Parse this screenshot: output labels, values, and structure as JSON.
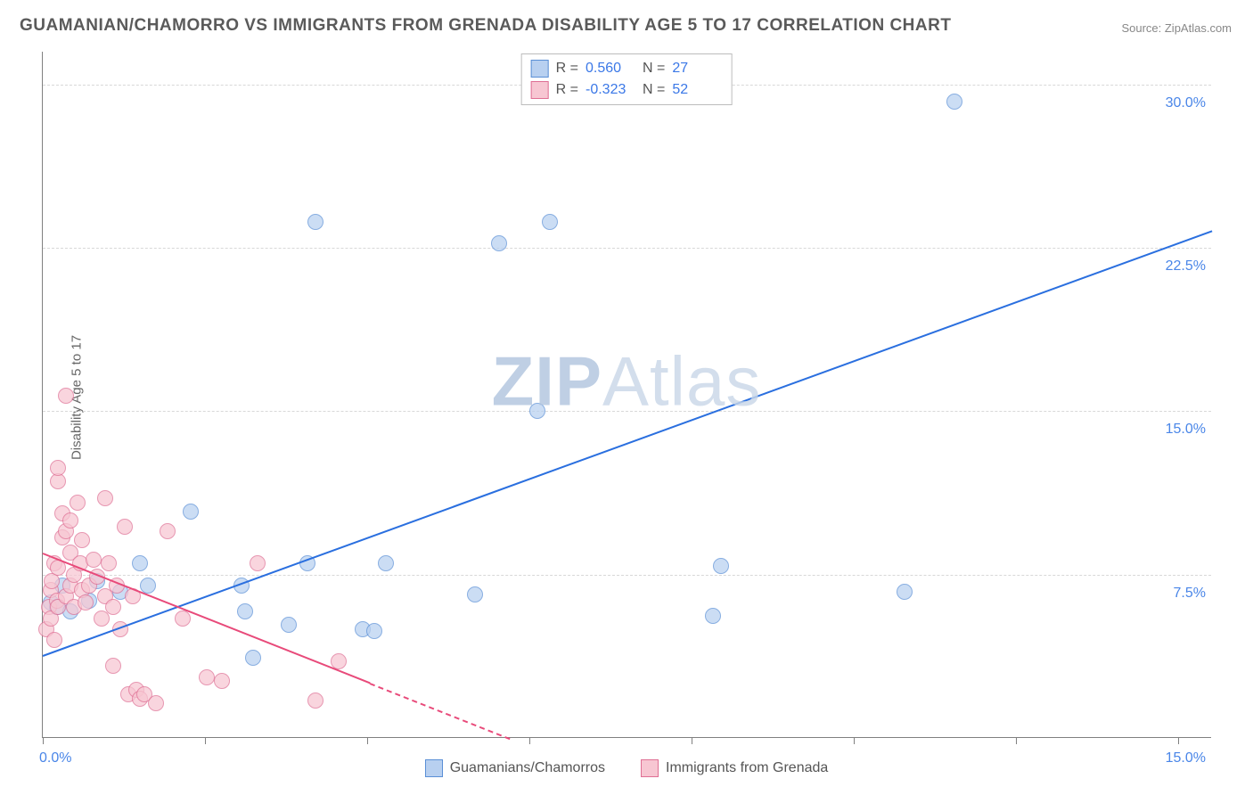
{
  "title": "GUAMANIAN/CHAMORRO VS IMMIGRANTS FROM GRENADA DISABILITY AGE 5 TO 17 CORRELATION CHART",
  "source": "Source: ZipAtlas.com",
  "ylabel": "Disability Age 5 to 17",
  "watermark_bold": "ZIP",
  "watermark_rest": "Atlas",
  "chart": {
    "type": "scatter",
    "xlim": [
      0,
      15
    ],
    "ylim": [
      0,
      31.5
    ],
    "x_ticks": [
      0,
      2.08,
      4.16,
      6.24,
      8.32,
      10.4,
      12.48,
      14.56
    ],
    "x_tick_labels": [
      "0.0%",
      "",
      "",
      "",
      "",
      "",
      "",
      "15.0%"
    ],
    "y_grid": [
      7.5,
      15.0,
      22.5,
      30.0
    ],
    "y_grid_labels": [
      "7.5%",
      "15.0%",
      "22.5%",
      "30.0%"
    ],
    "background_color": "#ffffff",
    "grid_color": "#d8d8d8",
    "axis_color": "#808080",
    "tick_label_color": "#4a86e8",
    "marker_radius": 9,
    "marker_border_width": 1,
    "series": [
      {
        "name": "Guamanians/Chamorros",
        "fill_color": "#b8d0f0",
        "border_color": "#5a8fd6",
        "fill_opacity": 0.72,
        "R": "0.560",
        "N": "27",
        "trend": {
          "x1": 0,
          "y1": 3.8,
          "x2": 15,
          "y2": 23.3,
          "color": "#2a6fdf",
          "width": 2,
          "dash_after_x": null
        },
        "points": [
          [
            0.1,
            6.2
          ],
          [
            0.18,
            6.0
          ],
          [
            0.25,
            7.0
          ],
          [
            0.35,
            5.8
          ],
          [
            0.6,
            6.3
          ],
          [
            0.7,
            7.2
          ],
          [
            1.0,
            6.7
          ],
          [
            1.25,
            8.0
          ],
          [
            1.35,
            7.0
          ],
          [
            1.9,
            10.4
          ],
          [
            2.55,
            7.0
          ],
          [
            2.6,
            5.8
          ],
          [
            2.7,
            3.7
          ],
          [
            3.15,
            5.2
          ],
          [
            3.4,
            8.0
          ],
          [
            3.5,
            23.7
          ],
          [
            4.1,
            5.0
          ],
          [
            4.25,
            4.9
          ],
          [
            4.4,
            8.0
          ],
          [
            5.55,
            6.6
          ],
          [
            5.85,
            22.7
          ],
          [
            6.35,
            15.0
          ],
          [
            6.5,
            23.7
          ],
          [
            8.6,
            5.6
          ],
          [
            8.7,
            7.9
          ],
          [
            11.05,
            6.7
          ],
          [
            11.7,
            29.2
          ]
        ]
      },
      {
        "name": "Immigrants from Grenada",
        "fill_color": "#f7c6d2",
        "border_color": "#df6f94",
        "fill_opacity": 0.72,
        "R": "-0.323",
        "N": "52",
        "trend": {
          "x1": 0,
          "y1": 8.5,
          "x2": 6.0,
          "y2": 0,
          "color": "#e84a7a",
          "width": 2,
          "dash_after_x": 4.2
        },
        "points": [
          [
            0.05,
            5.0
          ],
          [
            0.08,
            6.0
          ],
          [
            0.1,
            5.5
          ],
          [
            0.1,
            6.8
          ],
          [
            0.12,
            7.2
          ],
          [
            0.15,
            4.5
          ],
          [
            0.15,
            8.0
          ],
          [
            0.18,
            6.3
          ],
          [
            0.2,
            7.8
          ],
          [
            0.2,
            6.0
          ],
          [
            0.2,
            11.8
          ],
          [
            0.2,
            12.4
          ],
          [
            0.25,
            9.2
          ],
          [
            0.25,
            10.3
          ],
          [
            0.3,
            6.5
          ],
          [
            0.3,
            9.5
          ],
          [
            0.3,
            15.7
          ],
          [
            0.35,
            7.0
          ],
          [
            0.35,
            10.0
          ],
          [
            0.36,
            8.5
          ],
          [
            0.4,
            7.5
          ],
          [
            0.4,
            6.0
          ],
          [
            0.45,
            10.8
          ],
          [
            0.48,
            8.0
          ],
          [
            0.5,
            6.8
          ],
          [
            0.5,
            9.1
          ],
          [
            0.55,
            6.2
          ],
          [
            0.6,
            7.0
          ],
          [
            0.65,
            8.2
          ],
          [
            0.7,
            7.4
          ],
          [
            0.75,
            5.5
          ],
          [
            0.8,
            6.5
          ],
          [
            0.8,
            11.0
          ],
          [
            0.85,
            8.0
          ],
          [
            0.9,
            3.3
          ],
          [
            0.9,
            6.0
          ],
          [
            0.95,
            7.0
          ],
          [
            1.0,
            5.0
          ],
          [
            1.05,
            9.7
          ],
          [
            1.1,
            2.0
          ],
          [
            1.15,
            6.5
          ],
          [
            1.2,
            2.2
          ],
          [
            1.25,
            1.8
          ],
          [
            1.3,
            2.0
          ],
          [
            1.45,
            1.6
          ],
          [
            1.6,
            9.5
          ],
          [
            1.8,
            5.5
          ],
          [
            2.1,
            2.8
          ],
          [
            2.3,
            2.6
          ],
          [
            2.75,
            8.0
          ],
          [
            3.5,
            1.7
          ],
          [
            3.8,
            3.5
          ]
        ]
      }
    ]
  },
  "legend_top": {
    "labels": [
      "R =",
      "N ="
    ]
  },
  "legend_bottom": {
    "items": [
      "Guamanians/Chamorros",
      "Immigrants from Grenada"
    ]
  }
}
